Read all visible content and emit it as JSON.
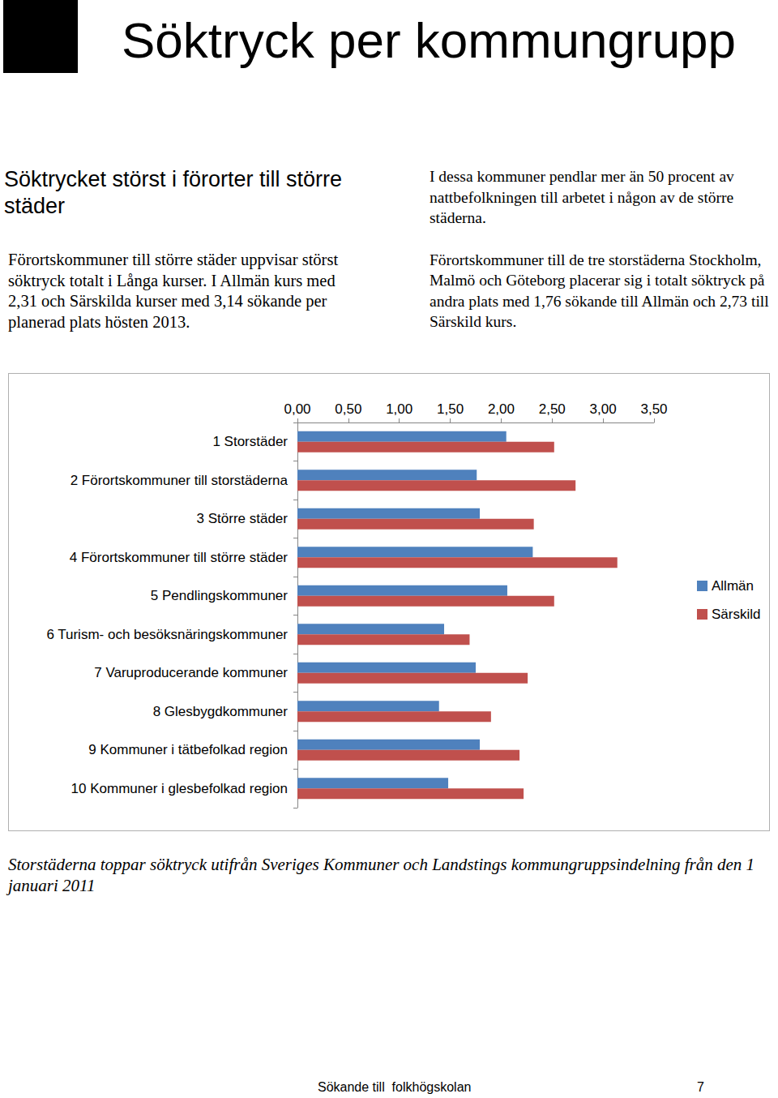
{
  "page": {
    "title": "Söktryck per kommungrupp",
    "heading": "Söktrycket störst i förorter till större städer",
    "left_text": "Förortskommuner till större städer uppvisar störst söktryck totalt i Långa kurser. I Allmän kurs med 2,31 och Särskilda kurser med 3,14 sökande per planerad plats hösten 2013.",
    "right_text": [
      "I dessa kommuner pendlar mer än 50 procent av nattbefolkningen till arbetet i någon av de större städerna.",
      "Förortskommuner till de tre storstäderna Stockholm, Malmö och Göteborg placerar sig i totalt söktryck på andra plats med 1,76 sökande till Allmän och 2,73 till Särskild kurs."
    ],
    "caption": "Storstäderna toppar söktryck utifrån Sveriges Kommuner och Landstings kommungruppsindelning från den 1 januari 2011",
    "footer": "Sökande till  folkhögskolan",
    "page_number": 7
  },
  "chart_data": {
    "type": "bar",
    "orientation": "horizontal",
    "categories": [
      "1 Storstäder",
      "2 Förortskommuner till storstäderna",
      "3 Större städer",
      "4 Förortskommuner till större städer",
      "5 Pendlingskommuner",
      "6 Turism- och besöksnäringskommuner",
      "7 Varuproducerande kommuner",
      "8 Glesbygdkommuner",
      "9 Kommuner i tätbefolkad region",
      "10 Kommuner i glesbefolkad region"
    ],
    "series": [
      {
        "name": "Allmän",
        "color": "#4f81bd",
        "values": [
          2.05,
          1.76,
          1.79,
          2.31,
          2.06,
          1.44,
          1.75,
          1.39,
          1.79,
          1.48
        ]
      },
      {
        "name": "Särskild",
        "color": "#c0504d",
        "values": [
          2.52,
          2.73,
          2.32,
          3.14,
          2.52,
          1.69,
          2.26,
          1.9,
          2.18,
          2.22
        ]
      }
    ],
    "xlim": [
      0,
      3.5
    ],
    "xticks": [
      {
        "value": 0,
        "label": "0,00"
      },
      {
        "value": 0.5,
        "label": "0,50"
      },
      {
        "value": 1,
        "label": "1,00"
      },
      {
        "value": 1.5,
        "label": "1,50"
      },
      {
        "value": 2,
        "label": "2,00"
      },
      {
        "value": 2.5,
        "label": "2,50"
      },
      {
        "value": 3,
        "label": "3,00"
      },
      {
        "value": 3.5,
        "label": "3,50"
      }
    ],
    "grid": false,
    "legend": "right"
  }
}
